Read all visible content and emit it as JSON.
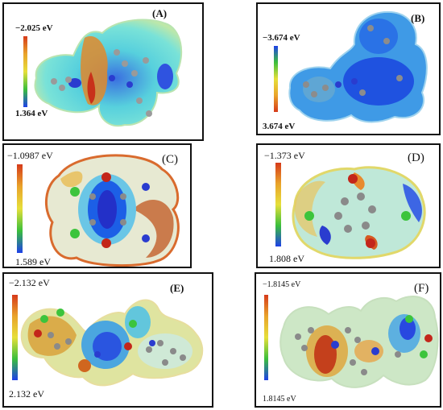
{
  "panels": [
    {
      "id": "A",
      "tag": "(A)",
      "top": "−2.025 eV",
      "bottom": "1.364 eV",
      "gradient": "red-top"
    },
    {
      "id": "B",
      "tag": "(B)",
      "top": "−3.674 eV",
      "bottom": "3.674 eV",
      "gradient": "blue-top"
    },
    {
      "id": "C",
      "tag": "(C)",
      "top": "−1.0987 eV",
      "bottom": "1.589 eV",
      "gradient": "red-top"
    },
    {
      "id": "D",
      "tag": "(D)",
      "top": "−1.373 eV",
      "bottom": "1.808 eV",
      "gradient": "red-top"
    },
    {
      "id": "E",
      "tag": "(E)",
      "top": "−2.132 eV",
      "bottom": "2.132 eV",
      "gradient": "red-top"
    },
    {
      "id": "F",
      "tag": "(F)",
      "top": "−1.8145 eV",
      "bottom": "1.8145 eV",
      "gradient": "red-top"
    }
  ],
  "colors": {
    "red": "#d63a1a",
    "orange": "#e9a32a",
    "yellow": "#e6df3a",
    "green": "#3bbf3b",
    "cyan": "#4fd6e0",
    "blue": "#1e40e8",
    "atom_red": "#c3261a",
    "atom_green": "#3cc43c",
    "atom_blue": "#2a3ccf",
    "atom_grey": "#8a8a8a"
  }
}
